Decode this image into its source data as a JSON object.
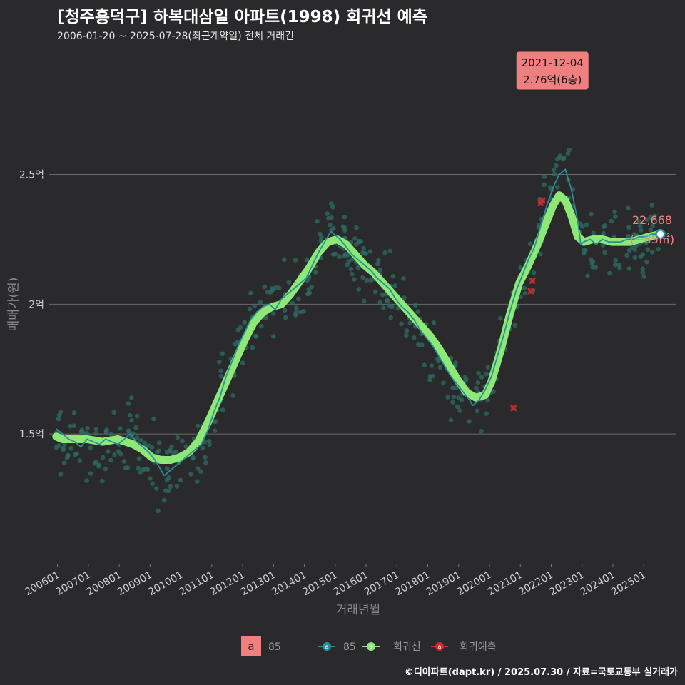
{
  "header": {
    "title": "[청주흥덕구] 하복대삼일 아파트(1998) 회귀선 예측",
    "subtitle": "2006-01-20 ~ 2025-07-28(최근계약일) 전체 거래건"
  },
  "footer": {
    "credit": "©디아파트(dapt.kr) / 2025.07.30 / 자료=국토교통부 실거래가"
  },
  "colors": {
    "background": "#2a2a2c",
    "line85": "#2a8f97",
    "points85": "#2e6b63",
    "regression": "#8ee878",
    "prediction": "#c62d2d",
    "annotation": "#f08080",
    "grid": "#6a6a6a"
  },
  "chart_data": {
    "type": "scatter",
    "title": "[청주흥덕구] 하복대삼일 아파트(1998) 회귀선 예측",
    "xlabel": "거래년월",
    "ylabel": "매매가(원)",
    "x_tick_labels": [
      "200601",
      "200701",
      "200801",
      "200901",
      "201001",
      "201101",
      "201201",
      "201301",
      "201401",
      "201501",
      "201601",
      "201701",
      "201801",
      "201901",
      "202001",
      "202101",
      "202201",
      "202301",
      "202401",
      "202501"
    ],
    "x_range_years": [
      2005.75,
      2026.1
    ],
    "ylim": [
      1.0,
      2.98
    ],
    "y_ticks": [
      {
        "value": 1.5,
        "label": "1.5억"
      },
      {
        "value": 2.0,
        "label": "2억"
      },
      {
        "value": 2.5,
        "label": "2.5억"
      }
    ],
    "legend": {
      "label_box": "a",
      "label_box_text": "85",
      "items": [
        {
          "key": "line85",
          "label": "85"
        },
        {
          "key": "regression",
          "label": "회귀선"
        },
        {
          "key": "prediction",
          "label": "회귀예측"
        }
      ]
    },
    "annotation": {
      "date": "2021-12-04",
      "text": "2.76억(6층)",
      "x": 2021.92,
      "y": 2.76
    },
    "end_label": {
      "value": "22,668",
      "area": "(~85㎡)",
      "x": 2025.58,
      "y": 2.2668
    },
    "series": [
      {
        "name": "85",
        "type": "line",
        "points": [
          [
            2006.0,
            1.52
          ],
          [
            2006.2,
            1.5
          ],
          [
            2006.4,
            1.48
          ],
          [
            2006.6,
            1.47
          ],
          [
            2006.8,
            1.45
          ],
          [
            2007.0,
            1.48
          ],
          [
            2007.2,
            1.47
          ],
          [
            2007.4,
            1.46
          ],
          [
            2007.6,
            1.48
          ],
          [
            2007.8,
            1.47
          ],
          [
            2008.0,
            1.46
          ],
          [
            2008.2,
            1.48
          ],
          [
            2008.4,
            1.5
          ],
          [
            2008.6,
            1.47
          ],
          [
            2008.8,
            1.45
          ],
          [
            2009.0,
            1.43
          ],
          [
            2009.2,
            1.4
          ],
          [
            2009.4,
            1.36
          ],
          [
            2009.5,
            1.34
          ],
          [
            2009.7,
            1.36
          ],
          [
            2009.9,
            1.38
          ],
          [
            2010.1,
            1.4
          ],
          [
            2010.3,
            1.42
          ],
          [
            2010.5,
            1.44
          ],
          [
            2010.7,
            1.46
          ],
          [
            2010.9,
            1.51
          ],
          [
            2011.1,
            1.58
          ],
          [
            2011.3,
            1.64
          ],
          [
            2011.5,
            1.72
          ],
          [
            2011.7,
            1.78
          ],
          [
            2011.9,
            1.84
          ],
          [
            2012.1,
            1.89
          ],
          [
            2012.3,
            1.94
          ],
          [
            2012.5,
            1.97
          ],
          [
            2012.7,
            1.99
          ],
          [
            2012.9,
            2.0
          ],
          [
            2013.1,
            1.98
          ],
          [
            2013.3,
            2.02
          ],
          [
            2013.5,
            2.04
          ],
          [
            2013.7,
            2.06
          ],
          [
            2013.9,
            2.08
          ],
          [
            2014.1,
            2.1
          ],
          [
            2014.3,
            2.15
          ],
          [
            2014.5,
            2.2
          ],
          [
            2014.7,
            2.24
          ],
          [
            2014.9,
            2.28
          ],
          [
            2015.0,
            2.27
          ],
          [
            2015.2,
            2.25
          ],
          [
            2015.4,
            2.22
          ],
          [
            2015.6,
            2.19
          ],
          [
            2015.8,
            2.17
          ],
          [
            2016.0,
            2.15
          ],
          [
            2016.2,
            2.13
          ],
          [
            2016.4,
            2.1
          ],
          [
            2016.6,
            2.08
          ],
          [
            2016.8,
            2.06
          ],
          [
            2017.0,
            2.02
          ],
          [
            2017.2,
            1.99
          ],
          [
            2017.4,
            1.97
          ],
          [
            2017.6,
            1.94
          ],
          [
            2017.8,
            1.9
          ],
          [
            2018.0,
            1.87
          ],
          [
            2018.2,
            1.84
          ],
          [
            2018.4,
            1.8
          ],
          [
            2018.6,
            1.76
          ],
          [
            2018.8,
            1.72
          ],
          [
            2019.0,
            1.69
          ],
          [
            2019.2,
            1.66
          ],
          [
            2019.4,
            1.63
          ],
          [
            2019.5,
            1.61
          ],
          [
            2019.7,
            1.63
          ],
          [
            2019.9,
            1.67
          ],
          [
            2020.1,
            1.72
          ],
          [
            2020.3,
            1.8
          ],
          [
            2020.5,
            1.88
          ],
          [
            2020.7,
            1.97
          ],
          [
            2020.9,
            2.05
          ],
          [
            2021.1,
            2.11
          ],
          [
            2021.3,
            2.17
          ],
          [
            2021.5,
            2.22
          ],
          [
            2021.7,
            2.3
          ],
          [
            2021.9,
            2.38
          ],
          [
            2022.1,
            2.45
          ],
          [
            2022.3,
            2.5
          ],
          [
            2022.5,
            2.52
          ],
          [
            2022.7,
            2.44
          ],
          [
            2022.9,
            2.32
          ],
          [
            2023.0,
            2.23
          ],
          [
            2023.1,
            2.24
          ],
          [
            2023.3,
            2.25
          ],
          [
            2023.5,
            2.23
          ],
          [
            2023.7,
            2.25
          ],
          [
            2023.9,
            2.24
          ],
          [
            2024.1,
            2.24
          ],
          [
            2024.3,
            2.24
          ],
          [
            2024.5,
            2.25
          ],
          [
            2024.7,
            2.25
          ],
          [
            2024.9,
            2.26
          ],
          [
            2025.1,
            2.26
          ],
          [
            2025.3,
            2.27
          ],
          [
            2025.58,
            2.27
          ]
        ]
      },
      {
        "name": "회귀선",
        "type": "line",
        "points": [
          [
            2006.0,
            1.49
          ],
          [
            2006.2,
            1.48
          ],
          [
            2006.5,
            1.48
          ],
          [
            2007.0,
            1.48
          ],
          [
            2007.5,
            1.47
          ],
          [
            2008.0,
            1.48
          ],
          [
            2008.5,
            1.46
          ],
          [
            2008.8,
            1.44
          ],
          [
            2009.1,
            1.41
          ],
          [
            2009.4,
            1.4
          ],
          [
            2009.7,
            1.4
          ],
          [
            2010.0,
            1.41
          ],
          [
            2010.3,
            1.43
          ],
          [
            2010.6,
            1.47
          ],
          [
            2010.9,
            1.54
          ],
          [
            2011.2,
            1.62
          ],
          [
            2011.5,
            1.7
          ],
          [
            2011.8,
            1.78
          ],
          [
            2012.1,
            1.86
          ],
          [
            2012.4,
            1.93
          ],
          [
            2012.7,
            1.97
          ],
          [
            2013.0,
            1.99
          ],
          [
            2013.3,
            2.0
          ],
          [
            2013.6,
            2.04
          ],
          [
            2013.9,
            2.09
          ],
          [
            2014.2,
            2.14
          ],
          [
            2014.5,
            2.2
          ],
          [
            2014.8,
            2.24
          ],
          [
            2015.1,
            2.25
          ],
          [
            2015.4,
            2.23
          ],
          [
            2015.7,
            2.19
          ],
          [
            2016.0,
            2.15
          ],
          [
            2016.3,
            2.12
          ],
          [
            2016.6,
            2.08
          ],
          [
            2016.9,
            2.04
          ],
          [
            2017.2,
            2.0
          ],
          [
            2017.5,
            1.96
          ],
          [
            2017.8,
            1.92
          ],
          [
            2018.1,
            1.88
          ],
          [
            2018.4,
            1.83
          ],
          [
            2018.7,
            1.77
          ],
          [
            2019.0,
            1.71
          ],
          [
            2019.3,
            1.66
          ],
          [
            2019.6,
            1.64
          ],
          [
            2019.9,
            1.65
          ],
          [
            2020.1,
            1.7
          ],
          [
            2020.4,
            1.82
          ],
          [
            2020.7,
            1.96
          ],
          [
            2021.0,
            2.08
          ],
          [
            2021.3,
            2.15
          ],
          [
            2021.6,
            2.23
          ],
          [
            2021.9,
            2.32
          ],
          [
            2022.1,
            2.38
          ],
          [
            2022.3,
            2.42
          ],
          [
            2022.5,
            2.4
          ],
          [
            2022.7,
            2.34
          ],
          [
            2022.9,
            2.26
          ],
          [
            2023.1,
            2.24
          ],
          [
            2023.4,
            2.25
          ],
          [
            2023.7,
            2.25
          ],
          [
            2024.0,
            2.24
          ],
          [
            2024.3,
            2.24
          ],
          [
            2024.6,
            2.24
          ],
          [
            2024.9,
            2.25
          ],
          [
            2025.2,
            2.26
          ],
          [
            2025.58,
            2.27
          ]
        ]
      },
      {
        "name": "회귀예측",
        "type": "scatter",
        "points": [
          [
            2020.82,
            1.6
          ],
          [
            2021.38,
            2.05
          ],
          [
            2021.43,
            2.09
          ],
          [
            2021.7,
            2.39
          ],
          [
            2021.76,
            2.4
          ]
        ]
      }
    ]
  }
}
